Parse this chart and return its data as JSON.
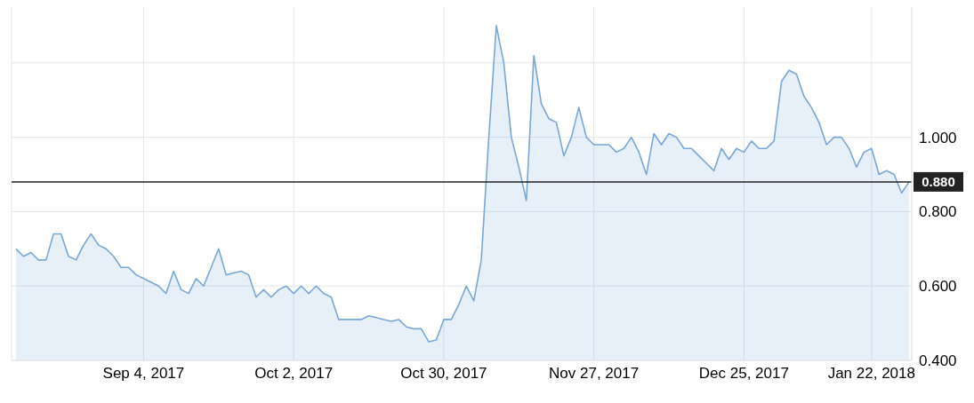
{
  "chart_data": {
    "type": "area",
    "categories": [
      null,
      null,
      null,
      null,
      null,
      null,
      null,
      null,
      null,
      null,
      null,
      null,
      null,
      null,
      null,
      null,
      null,
      "Sep 4, 2017",
      null,
      null,
      null,
      null,
      null,
      null,
      null,
      null,
      null,
      null,
      null,
      null,
      null,
      null,
      null,
      null,
      null,
      null,
      null,
      "Oct 2, 2017",
      null,
      null,
      null,
      null,
      null,
      null,
      null,
      null,
      null,
      null,
      null,
      null,
      null,
      null,
      null,
      null,
      null,
      null,
      null,
      "Oct 30, 2017",
      null,
      null,
      null,
      null,
      null,
      null,
      null,
      null,
      null,
      null,
      null,
      null,
      null,
      null,
      null,
      null,
      null,
      null,
      null,
      "Nov 27, 2017",
      null,
      null,
      null,
      null,
      null,
      null,
      null,
      null,
      null,
      null,
      null,
      null,
      null,
      null,
      null,
      null,
      null,
      null,
      null,
      "Dec 25, 2017",
      null,
      null,
      null,
      null,
      null,
      null,
      null,
      null,
      null,
      null,
      null,
      null,
      null,
      null,
      null,
      null,
      "Jan 22, 2018",
      null,
      null,
      null,
      null,
      null
    ],
    "series": [
      {
        "color": "#78a7d8",
        "values": [
          0.7,
          0.68,
          0.69,
          0.67,
          0.67,
          0.74,
          0.74,
          0.68,
          0.67,
          0.71,
          0.74,
          0.71,
          0.7,
          0.68,
          0.65,
          0.65,
          0.63,
          0.62,
          0.61,
          0.6,
          0.58,
          0.64,
          0.59,
          0.58,
          0.62,
          0.6,
          0.65,
          0.7,
          0.63,
          0.635,
          0.64,
          0.63,
          0.57,
          0.59,
          0.57,
          0.59,
          0.6,
          0.58,
          0.6,
          0.58,
          0.6,
          0.58,
          0.57,
          0.51,
          0.51,
          0.51,
          0.51,
          0.52,
          0.515,
          0.51,
          0.505,
          0.51,
          0.49,
          0.485,
          0.485,
          0.45,
          0.455,
          0.51,
          0.51,
          0.55,
          0.6,
          0.56,
          0.67,
          1.0,
          1.3,
          1.2,
          1.0,
          0.92,
          0.83,
          1.22,
          1.09,
          1.05,
          1.04,
          0.95,
          1.0,
          1.08,
          1.0,
          0.98,
          0.98,
          0.98,
          0.96,
          0.97,
          1.0,
          0.96,
          0.9,
          1.01,
          0.98,
          1.01,
          1.0,
          0.97,
          0.97,
          0.95,
          0.93,
          0.91,
          0.97,
          0.94,
          0.97,
          0.96,
          0.99,
          0.97,
          0.97,
          0.99,
          1.15,
          1.18,
          1.17,
          1.11,
          1.08,
          1.04,
          0.98,
          1.0,
          1.0,
          0.97,
          0.92,
          0.96,
          0.97,
          0.9,
          0.91,
          0.9,
          0.85,
          0.88
        ]
      }
    ],
    "ylim": [
      0.4,
      1.35
    ],
    "yticks": [
      {
        "value": 0.4,
        "label": "0.400"
      },
      {
        "value": 0.6,
        "label": "0.600"
      },
      {
        "value": 0.8,
        "label": "0.800"
      },
      {
        "value": 1.0,
        "label": "1.000"
      },
      {
        "value": 1.2,
        "label": null
      }
    ],
    "grid": true,
    "ref_lines": [
      {
        "axis": "y",
        "value": 0.88,
        "label": "0.880",
        "color": "#222222"
      }
    ]
  }
}
